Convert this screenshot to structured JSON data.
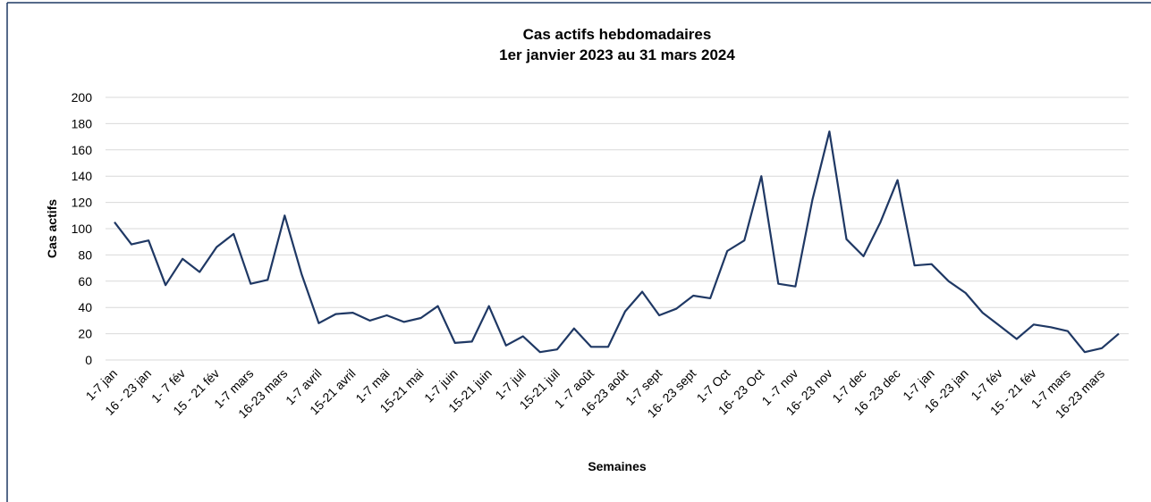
{
  "chart_data": {
    "type": "line",
    "title": "Cas actifs hebdomadaires",
    "subtitle": "1er janvier 2023 au 31 mars 2024",
    "y_label": "Cas actifs",
    "x_label": "Semaines",
    "categories": [
      "1-7 jan",
      null,
      "16 - 23 jan",
      null,
      "1- 7 fév",
      null,
      "15 - 21 fév",
      null,
      "1-7 mars",
      null,
      "16-23 mars",
      null,
      "1-7 avril",
      null,
      "15-21 avril",
      null,
      "1-7 mai",
      null,
      "15-21 mai",
      null,
      "1-7 juin",
      null,
      "15-21 juin",
      null,
      "1-7  juil",
      null,
      "15-21  juil",
      null,
      "1 -7 août",
      null,
      "16-23 août",
      null,
      "1-7 sept",
      null,
      "16- 23 sept",
      null,
      "1-7 Oct",
      null,
      "16- 23 Oct",
      null,
      "1 -7 nov",
      null,
      "16- 23 nov",
      null,
      "1-7 dec",
      null,
      "16 -23 dec",
      null,
      "1-7 jan",
      null,
      "16 -23 jan",
      null,
      "1-7 fév",
      null,
      "15 - 21 fév",
      null,
      "1-7 mars",
      null,
      "16-23 mars",
      null
    ],
    "series": [
      {
        "name": "Cas actifs",
        "color": "#1f3864",
        "values": [
          105,
          88,
          91,
          57,
          77,
          67,
          86,
          96,
          58,
          61,
          110,
          65,
          28,
          35,
          36,
          30,
          34,
          29,
          32,
          41,
          13,
          14,
          41,
          11,
          18,
          6,
          8,
          24,
          10,
          10,
          37,
          52,
          34,
          39,
          49,
          47,
          83,
          91,
          140,
          58,
          56,
          122,
          174,
          92,
          79,
          105,
          137,
          72,
          73,
          60,
          51,
          36,
          26,
          16,
          27,
          25,
          22,
          6,
          9,
          20
        ]
      }
    ],
    "ylim": [
      0,
      200
    ],
    "yticks": [
      0,
      20,
      40,
      60,
      80,
      100,
      120,
      140,
      160,
      180,
      200
    ],
    "grid": true
  }
}
